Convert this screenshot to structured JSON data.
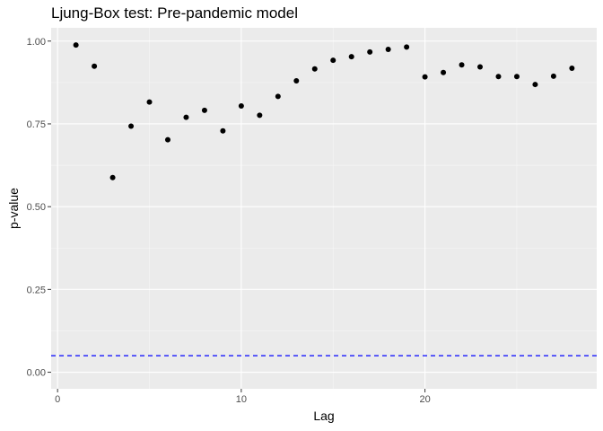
{
  "chart_data": {
    "type": "scatter",
    "title": "Ljung-Box test: Pre-pandemic model",
    "xlabel": "Lag",
    "ylabel": "p-value",
    "xlim": [
      -0.35,
      29.35
    ],
    "ylim": [
      -0.05,
      1.04
    ],
    "x_ticks": [
      0,
      10,
      20
    ],
    "x_minor_ticks": [
      5,
      15,
      25
    ],
    "y_ticks": [
      0.0,
      0.25,
      0.5,
      0.75,
      1.0
    ],
    "y_tick_labels": [
      "0.00",
      "0.25",
      "0.50",
      "0.75",
      "1.00"
    ],
    "y_minor_ticks": [
      0.125,
      0.375,
      0.625,
      0.875
    ],
    "grid": true,
    "legend": "none",
    "x": [
      1,
      2,
      3,
      4,
      5,
      6,
      7,
      8,
      9,
      10,
      11,
      12,
      13,
      14,
      15,
      16,
      17,
      18,
      19,
      20,
      21,
      22,
      23,
      24,
      25,
      26,
      27,
      28
    ],
    "y": [
      0.988,
      0.924,
      0.588,
      0.743,
      0.816,
      0.702,
      0.77,
      0.791,
      0.729,
      0.804,
      0.776,
      0.833,
      0.88,
      0.916,
      0.942,
      0.953,
      0.967,
      0.975,
      0.982,
      0.892,
      0.905,
      0.928,
      0.922,
      0.893,
      0.893,
      0.869,
      0.894,
      0.918
    ],
    "reference_line": {
      "y": 0.05,
      "style": "dashed"
    },
    "colors": {
      "panel_background": "#ebebeb",
      "grid_major": "#ffffff",
      "points": "#000000",
      "reference_line": "#0000ff"
    }
  }
}
